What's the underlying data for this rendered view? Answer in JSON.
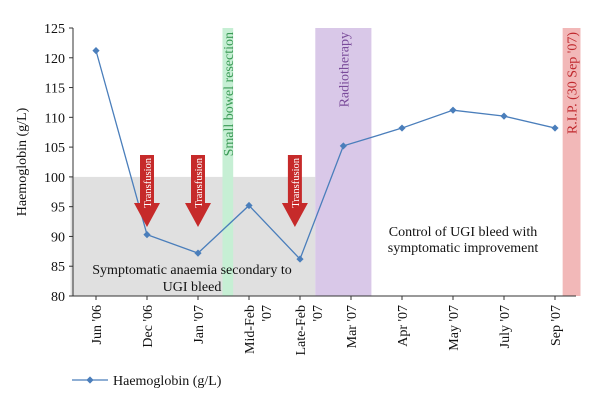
{
  "chart_data": {
    "type": "line",
    "ylabel": "Haemoglobin (g/L)",
    "ylim": [
      80,
      125
    ],
    "yticks": [
      80,
      85,
      90,
      95,
      100,
      105,
      110,
      115,
      120,
      125
    ],
    "categories": [
      "Jun '06",
      "Dec '06",
      "Jan '07",
      "Mid-Feb '07",
      "Late-Feb '07",
      "Mar '07",
      "Apr '07",
      "May '07",
      "July '07",
      "Sep '07"
    ],
    "x_tick_labels": [
      {
        "line1": "Jun '06",
        "line2": ""
      },
      {
        "line1": "Dec '06",
        "line2": ""
      },
      {
        "line1": "Jan '07",
        "line2": ""
      },
      {
        "line1": "Mid-Feb",
        "line2": "'07"
      },
      {
        "line1": "Late-Feb",
        "line2": "'07"
      },
      {
        "line1": "Mar '07",
        "line2": ""
      },
      {
        "line1": "Apr '07",
        "line2": ""
      },
      {
        "line1": "May '07",
        "line2": ""
      },
      {
        "line1": "July '07",
        "line2": ""
      },
      {
        "line1": "Sep '07",
        "line2": ""
      }
    ],
    "series": [
      {
        "name": "Haemoglobin (g/L)",
        "color": "#4a7ebb",
        "points": [
          {
            "x": 0,
            "y": 121.2
          },
          {
            "x": 1,
            "y": 90.3
          },
          {
            "x": 2,
            "y": 87.2
          },
          {
            "x": 3,
            "y": 95.2
          },
          {
            "x": 4,
            "y": 86.2
          },
          {
            "x": 4.85,
            "y": 105.2
          },
          {
            "x": 6,
            "y": 108.2
          },
          {
            "x": 7,
            "y": 111.2
          },
          {
            "x": 8,
            "y": 110.2
          },
          {
            "x": 9,
            "y": 108.2
          }
        ]
      }
    ],
    "shaded_region": {
      "x_from": -0.5,
      "x_to": 4.3,
      "y_from": 80,
      "y_to": 100,
      "color": "#e0e0e0"
    },
    "bands": [
      {
        "label": "Small bowel resection",
        "x_from": 2.48,
        "x_to": 2.69,
        "color": "#c6efd4",
        "text_color": "#3a9a55"
      },
      {
        "label": "Radiotherapy",
        "x_from": 4.3,
        "x_to": 5.4,
        "color": "#d9c8e8",
        "text_color": "#7a4b9a"
      },
      {
        "label": "R.I.P. (30 Sep '07)",
        "x_from": 9.15,
        "x_to": 9.5,
        "color": "#f2b8b8",
        "text_color": "#c0282d"
      }
    ],
    "transfusions": [
      {
        "label": "Transfusion",
        "x": 1
      },
      {
        "label": "Transfusion",
        "x": 2
      },
      {
        "label": "Transfusion",
        "x": 3.9
      }
    ],
    "annotations": [
      {
        "line1": "Symptomatic anaemia secondary to",
        "line2": "UGI bleed"
      },
      {
        "line1": "Control of UGI bleed with",
        "line2": "symptomatic improvement"
      }
    ],
    "legend": {
      "position": "bottom-left",
      "label": "Haemoglobin (g/L)"
    },
    "grid": false
  }
}
